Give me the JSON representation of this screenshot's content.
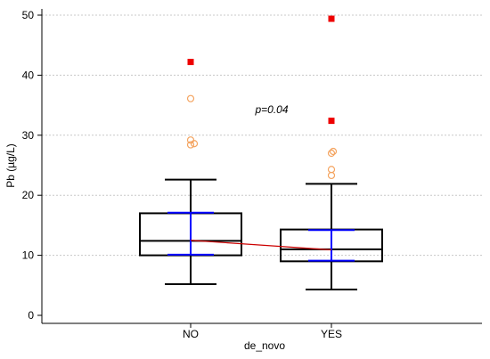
{
  "chart_data": {
    "type": "box",
    "categories": [
      "NO",
      "YES"
    ],
    "xlabel": "de_novo",
    "ylabel": "Pb (µg/L)",
    "ylim": [
      0,
      50
    ],
    "yticks": [
      0,
      10,
      20,
      30,
      40,
      50
    ],
    "grid": "horizontal dotted",
    "annotation": "p=0.04",
    "boxes": [
      {
        "category": "NO",
        "whisker_low": 5.2,
        "q1": 10.0,
        "median": 12.4,
        "q3": 17.0,
        "whisker_high": 22.6,
        "mean": 12.5,
        "ci_low": 10.1,
        "ci_high": 17.1,
        "outside_values": [
          28.4,
          28.6,
          29.2,
          36.1
        ],
        "far_out_values": [
          42.2
        ]
      },
      {
        "category": "YES",
        "whisker_low": 4.3,
        "q1": 9.0,
        "median": 11.0,
        "q3": 14.3,
        "whisker_high": 21.9,
        "mean": 10.9,
        "ci_low": 9.1,
        "ci_high": 14.2,
        "outside_values": [
          23.3,
          24.3,
          27.0,
          27.3
        ],
        "far_out_values": [
          32.4,
          49.4
        ]
      }
    ],
    "colors": {
      "box": "#000000",
      "ci": "#0000ff",
      "mean_line": "#cc0000",
      "outside": "#f4a460",
      "far_out": "#ee0000",
      "grid": "#c8c8c8"
    }
  }
}
